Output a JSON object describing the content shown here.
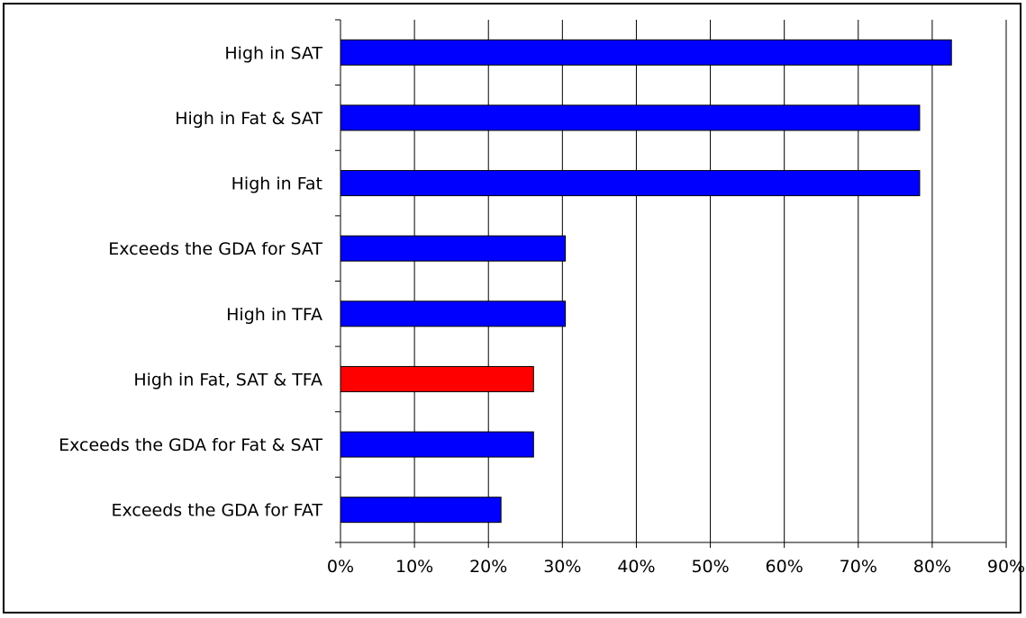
{
  "chart_data": {
    "type": "bar",
    "orientation": "horizontal",
    "title": "",
    "xlabel": "",
    "ylabel": "",
    "categories": [
      "High in SAT",
      "High in Fat & SAT",
      "High in Fat",
      "Exceeds the GDA for SAT",
      "High in TFA",
      "High in Fat, SAT & TFA",
      "Exceeds the GDA for Fat & SAT",
      "Exceeds the GDA for FAT"
    ],
    "values": [
      82.6,
      78.3,
      78.3,
      30.4,
      30.4,
      26.1,
      26.1,
      21.7
    ],
    "bar_colors": [
      "#0000ff",
      "#0000ff",
      "#0000ff",
      "#0000ff",
      "#0000ff",
      "#ff0000",
      "#0000ff",
      "#0000ff"
    ],
    "xlim": [
      0,
      90
    ],
    "xticks": [
      "0%",
      "10%",
      "20%",
      "30%",
      "40%",
      "50%",
      "60%",
      "70%",
      "80%",
      "90%"
    ],
    "grid": "vertical"
  }
}
